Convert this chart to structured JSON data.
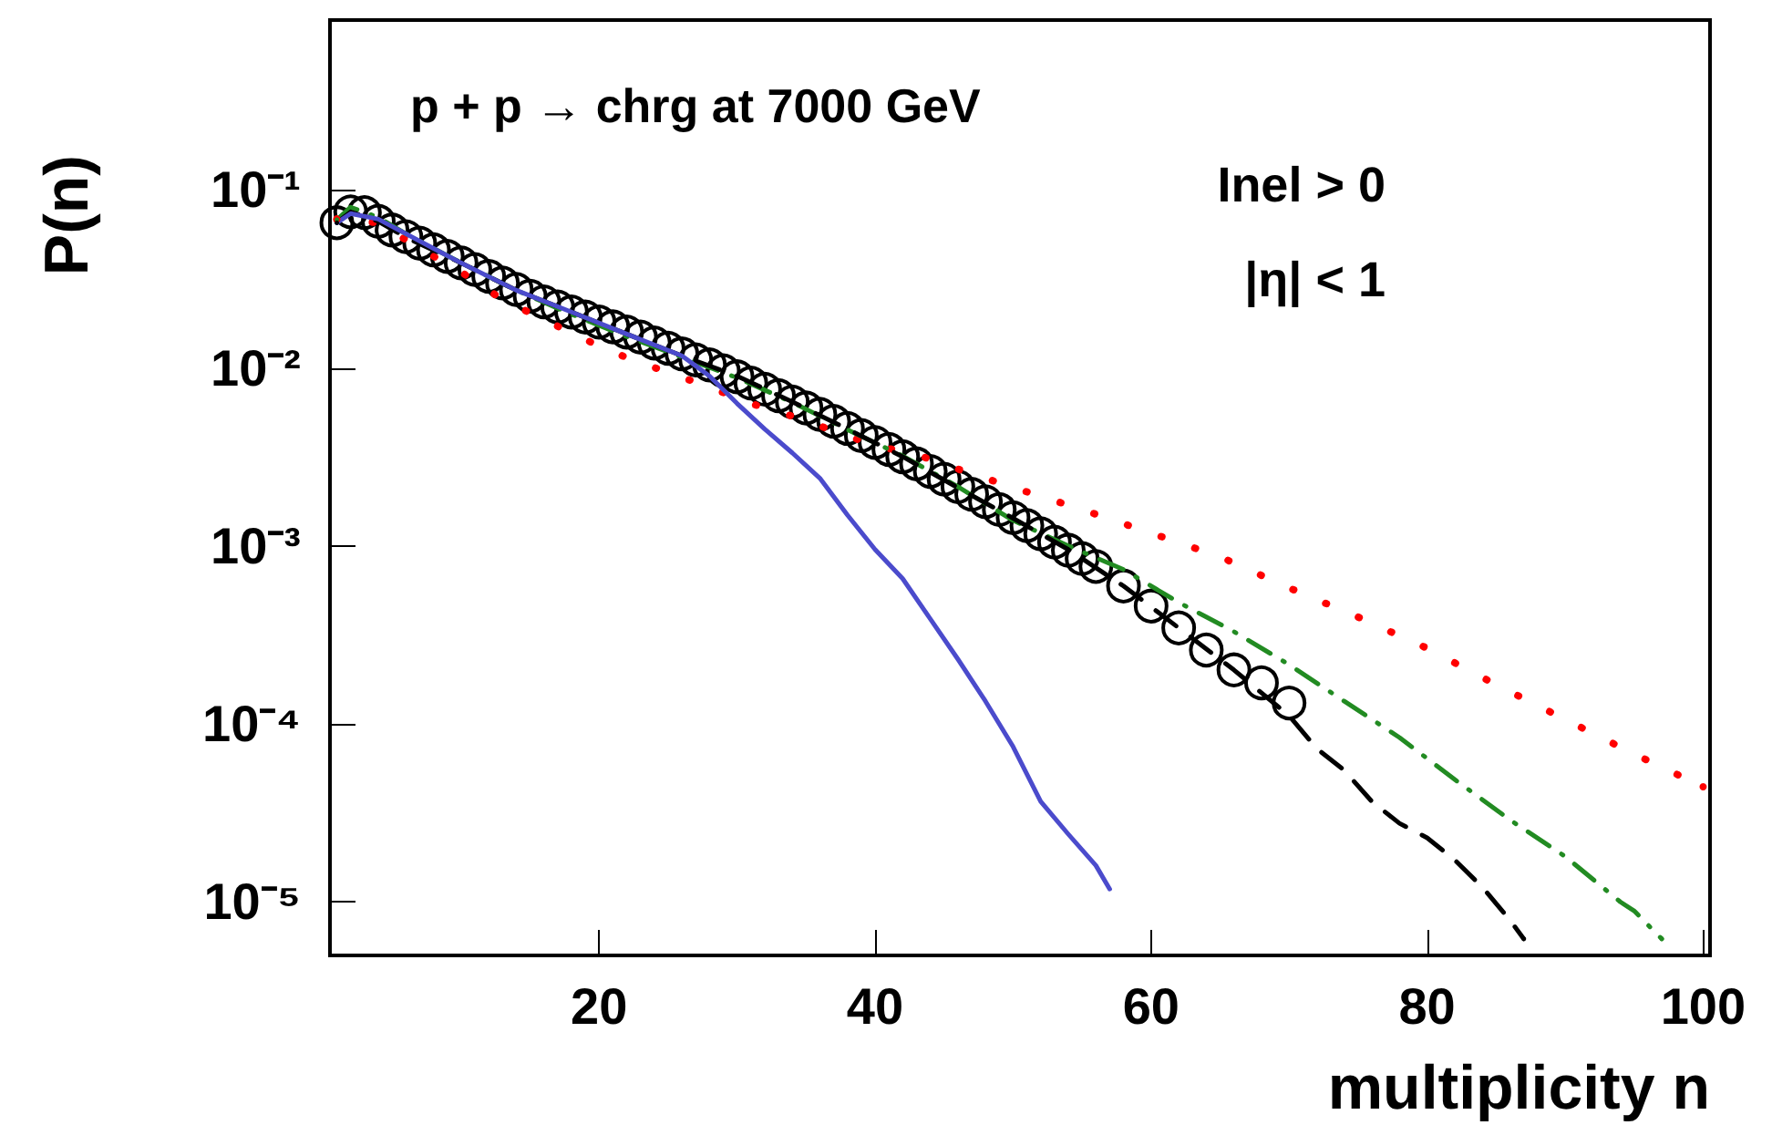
{
  "chart_data": {
    "type": "line",
    "title": "p + p → chrg at 7000 GeV",
    "xlabel": "multiplicity n",
    "ylabel": "P(n)",
    "annotations": [
      "Inel > 0",
      "|η| < 1"
    ],
    "log": "y",
    "xlim": [
      0.5,
      100.5
    ],
    "xticks": [
      20,
      40,
      60,
      80,
      100
    ],
    "ylim": [
      5e-06,
      0.9
    ],
    "yticks": [
      {
        "value": 0.1,
        "label": "10⁻¹"
      },
      {
        "value": 0.01,
        "label": "10⁻²"
      },
      {
        "value": 0.001,
        "label": "10⁻³"
      },
      {
        "value": 0.0001,
        "label": "10⁻⁴"
      },
      {
        "value": 1e-05,
        "label": "10⁻⁵"
      }
    ],
    "series": [
      {
        "color": "#ff0000",
        "line_style": "dotted",
        "marker": "none",
        "x": [
          1,
          4,
          7,
          10,
          13,
          16,
          19,
          22,
          25,
          28,
          31,
          34,
          37,
          40,
          43,
          46,
          50,
          55,
          60,
          65,
          70,
          75,
          80,
          85,
          90,
          95,
          100
        ],
        "values": [
          0.0685,
          0.0654,
          0.0469,
          0.0346,
          0.0242,
          0.0187,
          0.0144,
          0.0114,
          0.00943,
          0.0078,
          0.00631,
          0.00535,
          0.00443,
          0.00366,
          0.00326,
          0.0027,
          0.00213,
          0.0016,
          0.00118,
          0.000868,
          0.000581,
          0.000398,
          0.000266,
          0.000166,
          0.000106,
          6.77e-05,
          4.43e-05
        ]
      },
      {
        "color": "#228b22",
        "line_style": "dashdot",
        "marker": "none",
        "x": [
          1,
          2,
          4,
          6,
          8,
          10,
          14,
          18,
          22,
          26,
          30,
          34,
          38,
          42,
          46,
          50,
          54,
          58,
          62,
          66,
          70,
          74,
          78,
          82,
          86,
          90,
          94,
          95,
          97
        ],
        "values": [
          0.068,
          0.08,
          0.07,
          0.0567,
          0.0469,
          0.0389,
          0.0273,
          0.02,
          0.015,
          0.0115,
          0.0088,
          0.0064,
          0.0045,
          0.0032,
          0.00215,
          0.00139,
          0.001,
          0.000736,
          0.000481,
          0.00033,
          0.000215,
          0.000134,
          8.38e-05,
          4.87e-05,
          2.89e-05,
          1.8e-05,
          1e-05,
          8.9e-06,
          6.2e-06
        ]
      },
      {
        "color": "#000000",
        "line_style": "dashed",
        "marker": "none",
        "x": [
          1,
          2,
          4,
          6,
          8,
          10,
          14,
          18,
          22,
          26,
          30,
          34,
          38,
          42,
          46,
          50,
          54,
          58,
          62,
          66,
          70,
          72,
          74,
          76,
          78,
          80,
          82,
          84,
          86,
          87
        ],
        "values": [
          0.0654,
          0.0753,
          0.0666,
          0.0541,
          0.0458,
          0.0389,
          0.0273,
          0.0206,
          0.0155,
          0.0117,
          0.009,
          0.00645,
          0.00453,
          0.00317,
          0.00212,
          0.00143,
          0.000954,
          0.000595,
          0.000346,
          0.000201,
          0.000111,
          7.27e-05,
          5.48e-05,
          3.66e-05,
          2.76e-05,
          2.29e-05,
          1.72e-05,
          1.21e-05,
          7.9e-06,
          6.2e-06
        ]
      },
      {
        "color": "#4b4bcc",
        "line_style": "solid",
        "marker": "none",
        "x": [
          1,
          2,
          4,
          6,
          8,
          10,
          14,
          18,
          22,
          26,
          28,
          30,
          32,
          34,
          36,
          38,
          40,
          42,
          44,
          46,
          48,
          50,
          52,
          54,
          56,
          57
        ],
        "values": [
          0.0654,
          0.0736,
          0.0685,
          0.0567,
          0.0469,
          0.0389,
          0.0273,
          0.0206,
          0.0155,
          0.0117,
          0.009,
          0.00631,
          0.00453,
          0.00333,
          0.0024,
          0.00149,
          0.000954,
          0.000654,
          0.000389,
          0.000231,
          0.000134,
          7.44e-05,
          3.66e-05,
          2.4e-05,
          1.6e-05,
          1.18e-05
        ]
      },
      {
        "type": "scatter",
        "color": "#000000",
        "marker": "circle",
        "x": [
          1,
          2,
          3,
          4,
          5,
          6,
          7,
          8,
          9,
          10,
          11,
          12,
          13,
          14,
          15,
          16,
          17,
          18,
          19,
          20,
          21,
          22,
          23,
          24,
          25,
          26,
          27,
          28,
          29,
          30,
          31,
          32,
          33,
          34,
          35,
          36,
          37,
          38,
          39,
          40,
          41,
          42,
          43,
          44,
          45,
          46,
          47,
          48,
          49,
          50,
          51,
          52,
          53,
          54,
          55,
          56,
          58,
          60,
          62,
          64,
          66,
          68,
          70
        ],
        "values": [
          0.0654,
          0.0753,
          0.0746,
          0.0666,
          0.0595,
          0.0546,
          0.0502,
          0.0461,
          0.0423,
          0.0389,
          0.0357,
          0.0327,
          0.03,
          0.0276,
          0.0253,
          0.0235,
          0.022,
          0.0206,
          0.0193,
          0.0181,
          0.017,
          0.0159,
          0.0149,
          0.0138,
          0.0129,
          0.012,
          0.0111,
          0.0104,
          0.00963,
          0.00891,
          0.00822,
          0.00759,
          0.00698,
          0.00644,
          0.00595,
          0.00548,
          0.00501,
          0.00457,
          0.00417,
          0.00381,
          0.00348,
          0.00317,
          0.00289,
          0.00262,
          0.00237,
          0.00215,
          0.00195,
          0.00177,
          0.0016,
          0.00144,
          0.0013,
          0.00117,
          0.00105,
          0.000945,
          0.000849,
          0.000766,
          0.000595,
          0.000459,
          0.000346,
          0.00026,
          0.000201,
          0.00017,
          0.000131
        ]
      }
    ]
  }
}
